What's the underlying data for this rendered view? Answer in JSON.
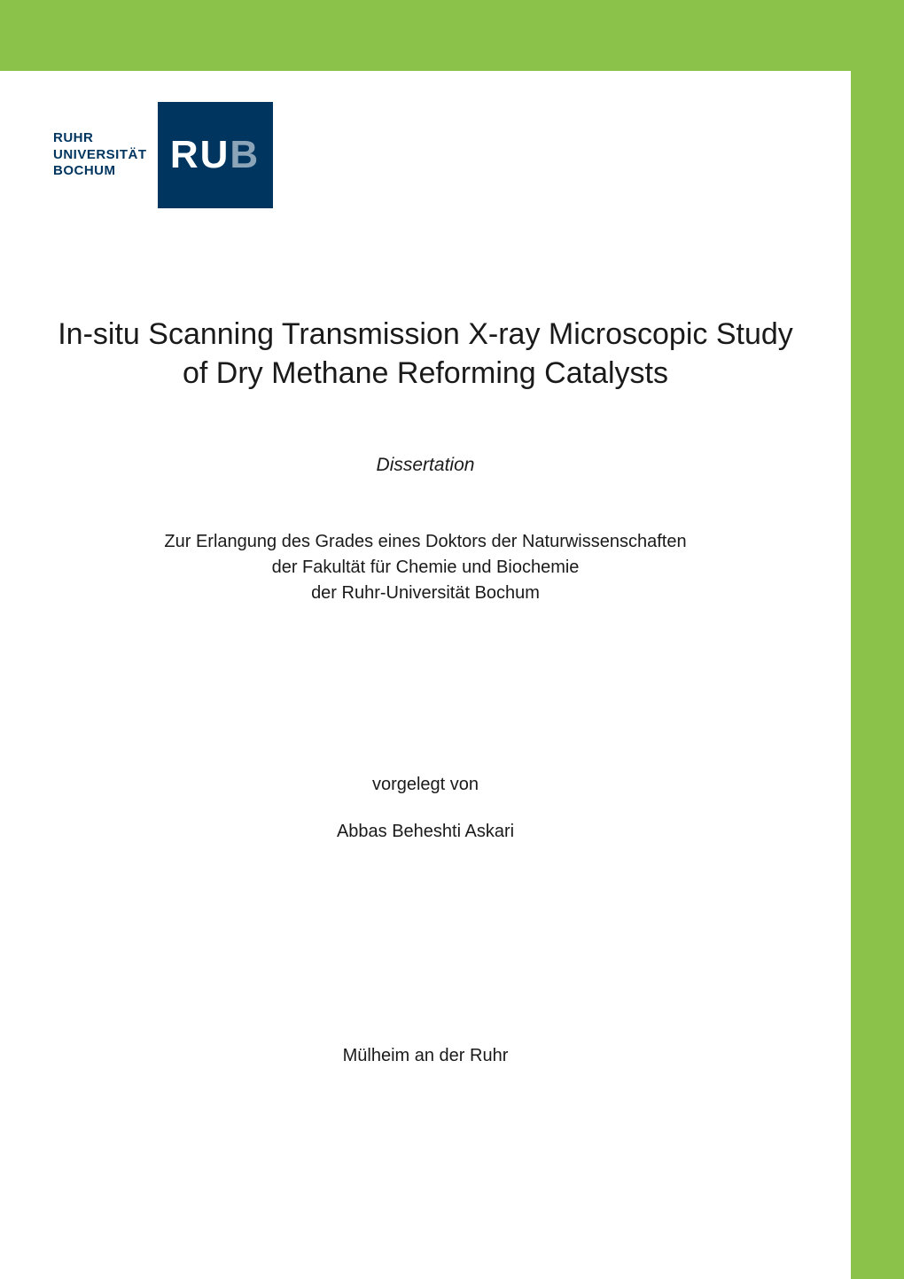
{
  "colors": {
    "banner": "#8bc34a",
    "logo_text": "#003560",
    "logo_box": "#003560",
    "text": "#1a1a1a",
    "background": "#ffffff"
  },
  "logo": {
    "line1": "RUHR",
    "line2": "UNIVERSITÄT",
    "line3": "BOCHUM",
    "abbrev_main": "RU",
    "abbrev_faded": "B"
  },
  "title": "In-situ Scanning Transmission X-ray Microscopic Study of Dry Methane Reforming Catalysts",
  "doc_type": "Dissertation",
  "purpose_line1": "Zur Erlangung des Grades eines Doktors der Naturwissenschaften",
  "purpose_line2": "der Fakultät für Chemie und Biochemie",
  "purpose_line3": "der Ruhr-Universität Bochum",
  "presented_label": "vorgelegt von",
  "author": "Abbas Beheshti Askari",
  "location": "Mülheim an der Ruhr"
}
